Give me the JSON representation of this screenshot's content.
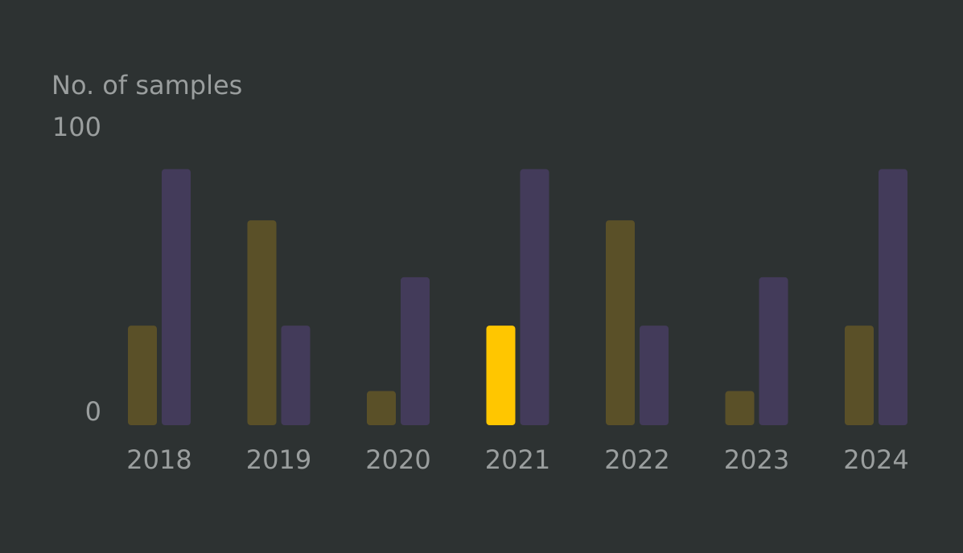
{
  "chart_data": {
    "type": "bar",
    "ylabel": "No. of samples",
    "ylim": [
      0,
      100
    ],
    "yticks": [
      "100",
      "0"
    ],
    "categories": [
      "2018",
      "2019",
      "2020",
      "2021",
      "2022",
      "2023",
      "2024"
    ],
    "series": [
      {
        "values": [
          35,
          72,
          12,
          35,
          72,
          12,
          35
        ],
        "color": "#5a5028",
        "highlight_color": "#ffc600"
      },
      {
        "values": [
          90,
          35,
          52,
          90,
          35,
          52,
          90
        ],
        "color": "#433b5a"
      }
    ],
    "highlighted_category": "2021",
    "grid": false,
    "legend": "none",
    "background": "#2d3232"
  }
}
